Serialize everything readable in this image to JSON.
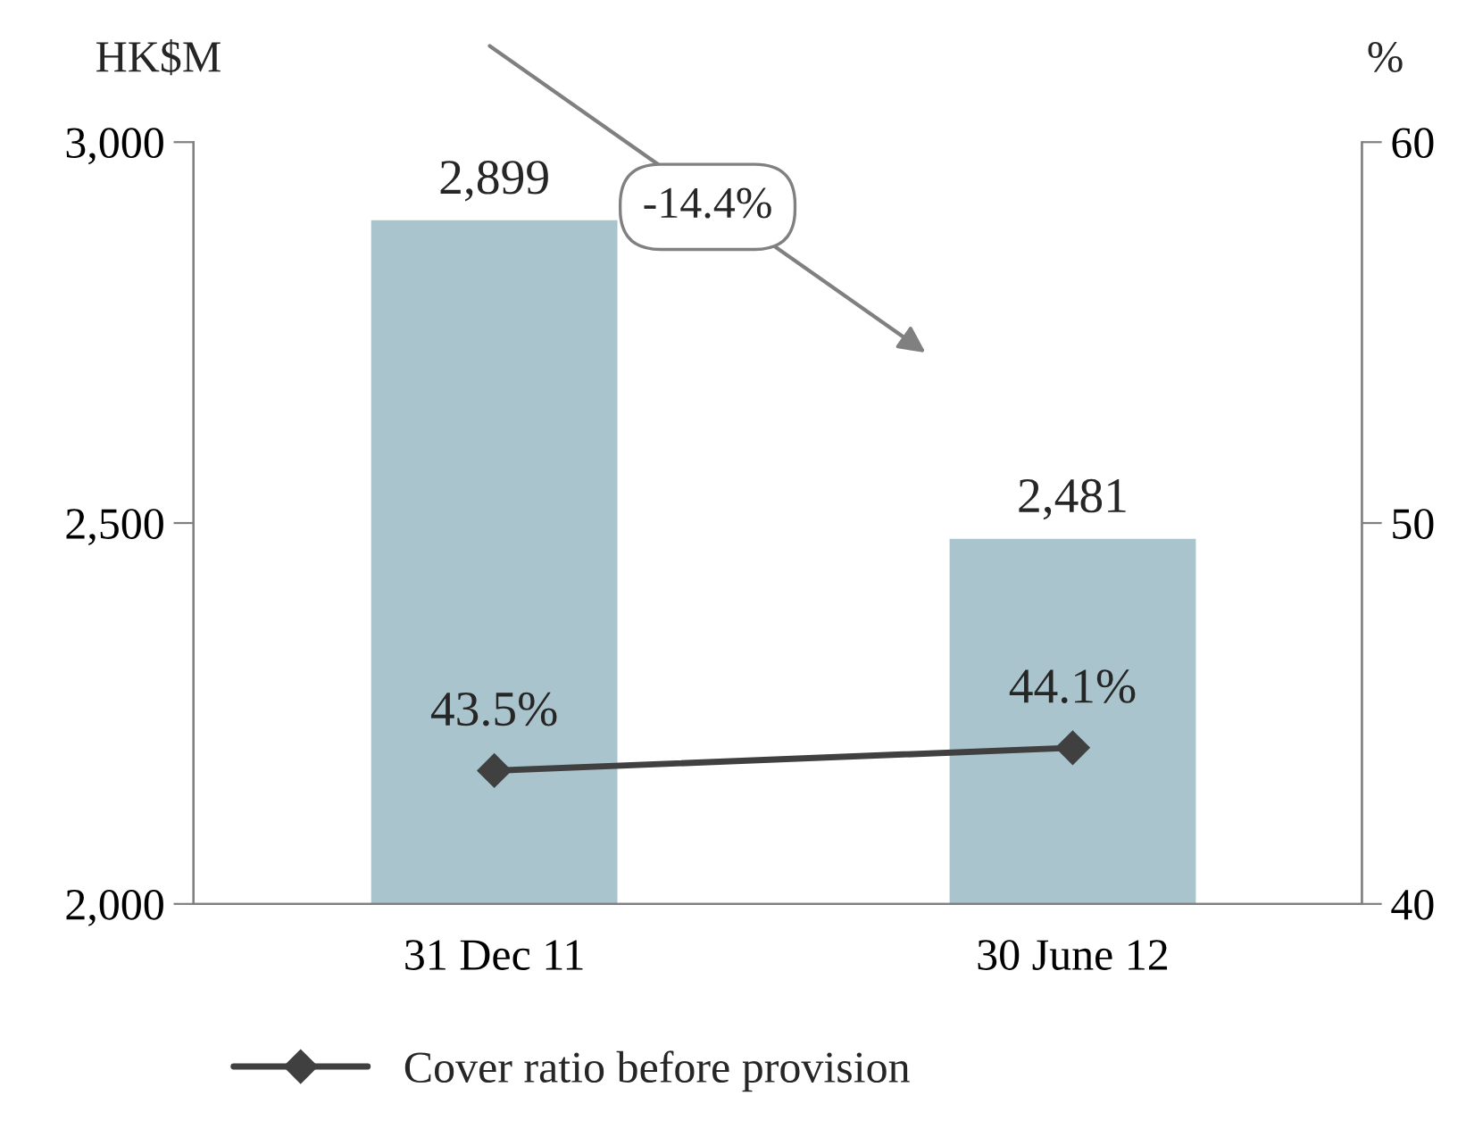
{
  "chart_data": {
    "type": "bar",
    "ylabel": "HK$M",
    "y2label": "%",
    "categories": [
      "31 Dec 11",
      "30 June 12"
    ],
    "series": [
      {
        "color": "#a9c4cc",
        "values": [
          2899,
          2481
        ],
        "value_labels": [
          "2,899",
          "2,481"
        ]
      },
      {
        "type": "line",
        "name": "Cover ratio before provision",
        "axis": "y2",
        "color": "#404040",
        "marker": "diamond",
        "line_style": "solid",
        "values": [
          43.5,
          44.1
        ],
        "value_labels": [
          "43.5%",
          "44.1%"
        ]
      }
    ],
    "ylim": [
      2000,
      3000
    ],
    "yticks": [
      {
        "value": 2000,
        "label": "2,000"
      },
      {
        "value": 2500,
        "label": "2,500"
      },
      {
        "value": 3000,
        "label": "3,000"
      }
    ],
    "y2lim": [
      40,
      60
    ],
    "y2ticks": [
      40,
      50,
      60
    ],
    "annotations": [
      "-14.4%"
    ],
    "legend": "bottom",
    "grid": false
  }
}
